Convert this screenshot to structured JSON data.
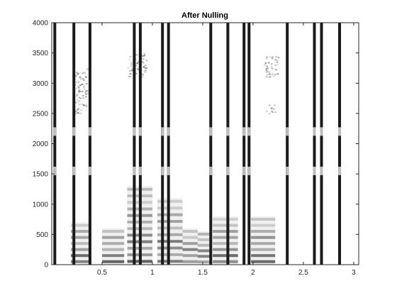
{
  "chart_data": {
    "type": "heatmap",
    "title": "After Nulling",
    "xlabel": "",
    "ylabel": "",
    "xlim": [
      0,
      3.05
    ],
    "ylim": [
      0,
      4000
    ],
    "x_ticks": [
      0.5,
      1,
      1.5,
      2,
      2.5,
      3
    ],
    "x_tick_labels": [
      "0.5",
      "1",
      "1.5",
      "2",
      "2.5",
      "3"
    ],
    "y_ticks": [
      0,
      500,
      1000,
      1500,
      2000,
      2500,
      3000,
      3500,
      4000
    ],
    "y_tick_labels": [
      "0",
      "500",
      "1000",
      "1500",
      "2000",
      "2500",
      "3000",
      "3500",
      "4000"
    ],
    "colormap": "gray-inverted",
    "grid": false,
    "vertical_lines": [
      0.03,
      0.22,
      0.38,
      0.82,
      0.88,
      1.1,
      1.16,
      1.58,
      1.75,
      1.91,
      1.96,
      2.34,
      2.61,
      2.68,
      2.86
    ],
    "harmonic_regions": [
      {
        "x": [
          0.19,
          0.39
        ],
        "f": [
          0,
          700
        ]
      },
      {
        "x": [
          0.5,
          0.72
        ],
        "f": [
          0,
          600
        ]
      },
      {
        "x": [
          0.75,
          1.0
        ],
        "f": [
          0,
          1300
        ]
      },
      {
        "x": [
          1.05,
          1.3
        ],
        "f": [
          0,
          1100
        ]
      },
      {
        "x": [
          1.3,
          1.45
        ],
        "f": [
          0,
          600
        ]
      },
      {
        "x": [
          1.45,
          1.58
        ],
        "f": [
          0,
          550
        ]
      },
      {
        "x": [
          1.6,
          1.85
        ],
        "f": [
          0,
          800
        ]
      },
      {
        "x": [
          1.98,
          2.22
        ],
        "f": [
          0,
          800
        ]
      }
    ],
    "formant_patches": [
      {
        "x": [
          0.22,
          0.35
        ],
        "f": [
          2500,
          3250
        ]
      },
      {
        "x": [
          0.75,
          0.95
        ],
        "f": [
          3100,
          3500
        ]
      },
      {
        "x": [
          2.1,
          2.25
        ],
        "f": [
          3100,
          3450
        ]
      },
      {
        "x": [
          2.12,
          2.22
        ],
        "f": [
          2500,
          2650
        ]
      }
    ]
  }
}
